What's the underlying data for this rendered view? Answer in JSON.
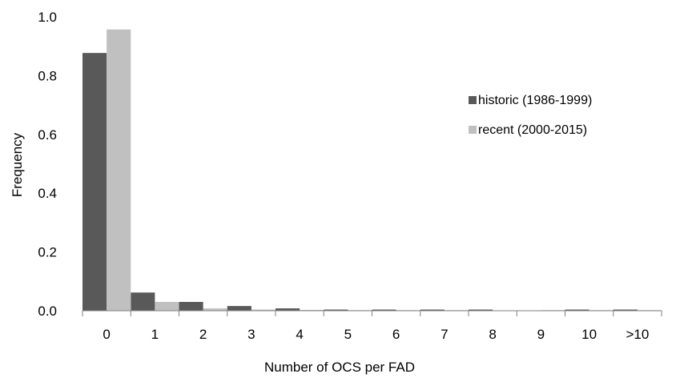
{
  "chart_data": {
    "type": "bar",
    "title": "",
    "xlabel": "Number of OCS per FAD",
    "ylabel": "Frequency",
    "ylim": [
      0,
      1.0
    ],
    "yticks": [
      "0.0",
      "0.2",
      "0.4",
      "0.6",
      "0.8",
      "1.0"
    ],
    "grid": false,
    "legend_position": "right",
    "categories": [
      "0",
      "1",
      "2",
      "3",
      "4",
      "5",
      "6",
      "7",
      "8",
      "9",
      "10",
      ">10"
    ],
    "series": [
      {
        "name": "historic (1986-1999)",
        "color": "#595959",
        "values": [
          0.877,
          0.062,
          0.03,
          0.016,
          0.008,
          0.004,
          0.004,
          0.004,
          0.004,
          0.001,
          0.004,
          0.004
        ]
      },
      {
        "name": "recent (2000-2015)",
        "color": "#c0c0c0",
        "values": [
          0.957,
          0.03,
          0.008,
          0.004,
          0.003,
          0.002,
          0.002,
          0.002,
          0.001,
          0.002,
          0.002,
          0.002
        ]
      }
    ]
  }
}
